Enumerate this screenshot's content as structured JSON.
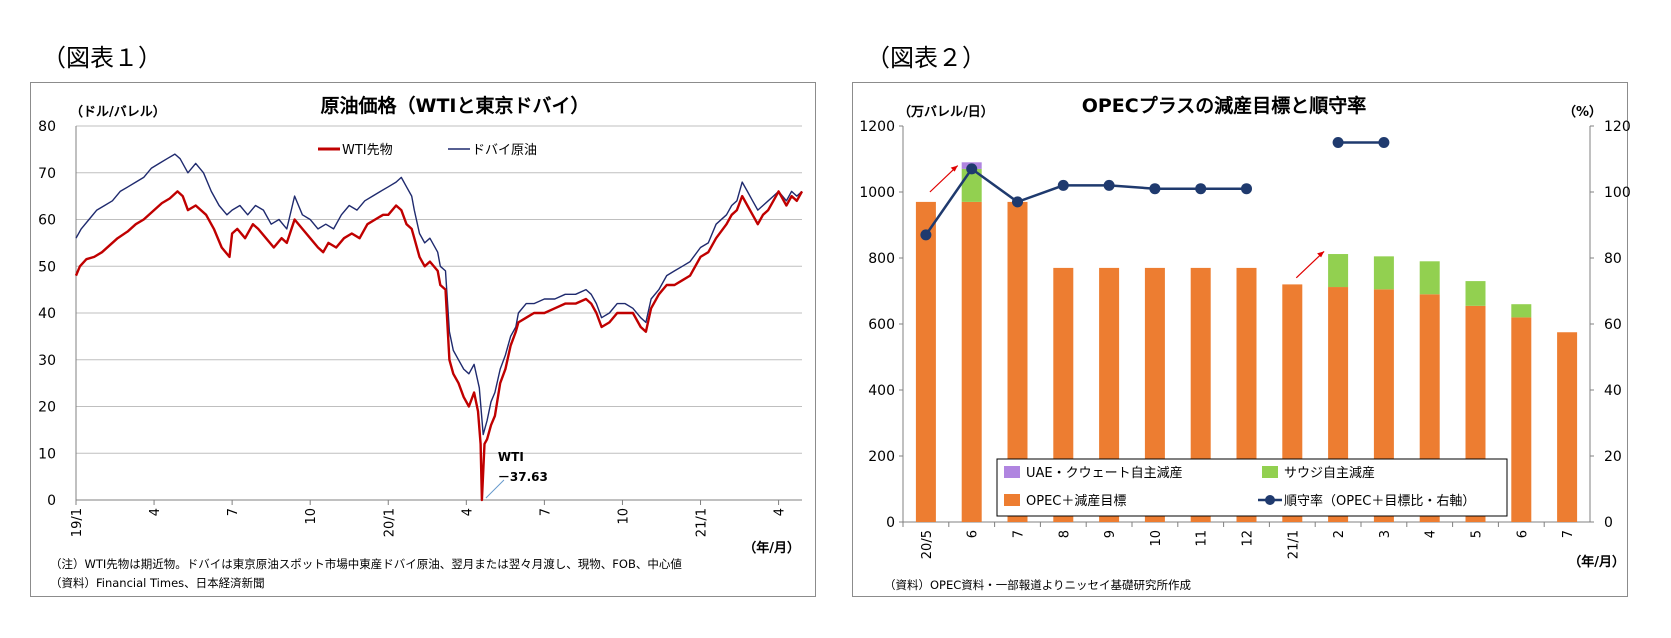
{
  "figures": [
    {
      "label": "（図表１）"
    },
    {
      "label": "（図表２）"
    }
  ],
  "chart_data": [
    {
      "type": "line",
      "title": "原油価格（WTIと東京ドバイ）",
      "ylabel": "（ドル/バレル）",
      "xlabel": "（年/月）",
      "ylim": [
        0,
        80
      ],
      "yticks": [
        0,
        10,
        20,
        30,
        40,
        50,
        60,
        70,
        80
      ],
      "xticks": [
        "19/1",
        "4",
        "7",
        "10",
        "20/1",
        "4",
        "7",
        "10",
        "21/1",
        "4"
      ],
      "x_unit": "months since 2019-01",
      "grid": true,
      "legend_position": "top-center",
      "annotation": {
        "line1": "WTI",
        "line2": "－37.63",
        "x": 15.6,
        "value": -37.63
      },
      "notes": [
        "（注）WTI先物は期近物。ドバイは東京原油スポット市場中東産ドバイ原油、翌月または翌々月渡し、現物、FOB、中心値",
        "（資料）Financial Times、日本経済新聞"
      ],
      "series": [
        {
          "name": "WTI先物",
          "color": "#c00000",
          "points": [
            [
              0,
              48
            ],
            [
              0.15,
              50
            ],
            [
              0.4,
              51.5
            ],
            [
              0.7,
              52
            ],
            [
              1,
              53
            ],
            [
              1.3,
              54.5
            ],
            [
              1.6,
              56
            ],
            [
              2,
              57.5
            ],
            [
              2.3,
              59
            ],
            [
              2.6,
              60
            ],
            [
              3,
              62
            ],
            [
              3.3,
              63.5
            ],
            [
              3.6,
              64.5
            ],
            [
              3.9,
              66
            ],
            [
              4.1,
              65
            ],
            [
              4.3,
              62
            ],
            [
              4.6,
              63
            ],
            [
              5,
              61
            ],
            [
              5.3,
              58
            ],
            [
              5.6,
              54
            ],
            [
              5.9,
              52
            ],
            [
              6,
              57
            ],
            [
              6.2,
              58
            ],
            [
              6.5,
              56
            ],
            [
              6.8,
              59
            ],
            [
              7,
              58
            ],
            [
              7.3,
              56
            ],
            [
              7.6,
              54
            ],
            [
              7.9,
              56
            ],
            [
              8.1,
              55
            ],
            [
              8.4,
              60
            ],
            [
              8.7,
              58
            ],
            [
              9,
              56
            ],
            [
              9.3,
              54
            ],
            [
              9.5,
              53
            ],
            [
              9.7,
              55
            ],
            [
              10,
              54
            ],
            [
              10.3,
              56
            ],
            [
              10.6,
              57
            ],
            [
              10.9,
              56
            ],
            [
              11.2,
              59
            ],
            [
              11.5,
              60
            ],
            [
              11.8,
              61
            ],
            [
              12,
              61
            ],
            [
              12.3,
              63
            ],
            [
              12.5,
              62
            ],
            [
              12.7,
              59
            ],
            [
              12.9,
              58
            ],
            [
              13,
              56
            ],
            [
              13.2,
              52
            ],
            [
              13.4,
              50
            ],
            [
              13.6,
              51
            ],
            [
              13.9,
              49
            ],
            [
              14,
              46
            ],
            [
              14.2,
              45
            ],
            [
              14.35,
              30
            ],
            [
              14.5,
              27
            ],
            [
              14.7,
              25
            ],
            [
              14.9,
              22
            ],
            [
              15.1,
              20
            ],
            [
              15.3,
              23
            ],
            [
              15.45,
              19
            ],
            [
              15.55,
              12
            ],
            [
              15.6,
              -37.63
            ],
            [
              15.7,
              12
            ],
            [
              15.8,
              13
            ],
            [
              15.95,
              16
            ],
            [
              16.1,
              18
            ],
            [
              16.3,
              25
            ],
            [
              16.5,
              28
            ],
            [
              16.7,
              33
            ],
            [
              16.9,
              36
            ],
            [
              17,
              38
            ],
            [
              17.3,
              39
            ],
            [
              17.6,
              40
            ],
            [
              18,
              40
            ],
            [
              18.4,
              41
            ],
            [
              18.8,
              42
            ],
            [
              19.2,
              42
            ],
            [
              19.6,
              43
            ],
            [
              19.8,
              42
            ],
            [
              20,
              40
            ],
            [
              20.2,
              37
            ],
            [
              20.5,
              38
            ],
            [
              20.8,
              40
            ],
            [
              21.1,
              40
            ],
            [
              21.4,
              40
            ],
            [
              21.7,
              37
            ],
            [
              21.9,
              36
            ],
            [
              22.1,
              41
            ],
            [
              22.4,
              44
            ],
            [
              22.7,
              46
            ],
            [
              23,
              46
            ],
            [
              23.3,
              47
            ],
            [
              23.6,
              48
            ],
            [
              24,
              52
            ],
            [
              24.3,
              53
            ],
            [
              24.6,
              56
            ],
            [
              25,
              59
            ],
            [
              25.2,
              61
            ],
            [
              25.4,
              62
            ],
            [
              25.6,
              65
            ],
            [
              25.8,
              63
            ],
            [
              26,
              61
            ],
            [
              26.2,
              59
            ],
            [
              26.4,
              61
            ],
            [
              26.6,
              62
            ],
            [
              26.8,
              64
            ],
            [
              27,
              66
            ],
            [
              27.3,
              63
            ],
            [
              27.5,
              65
            ],
            [
              27.7,
              64
            ],
            [
              27.9,
              66
            ]
          ]
        },
        {
          "name": "ドバイ原油",
          "color": "#1f2a6e",
          "points": [
            [
              0,
              56
            ],
            [
              0.2,
              58
            ],
            [
              0.5,
              60
            ],
            [
              0.8,
              62
            ],
            [
              1.1,
              63
            ],
            [
              1.4,
              64
            ],
            [
              1.7,
              66
            ],
            [
              2,
              67
            ],
            [
              2.3,
              68
            ],
            [
              2.6,
              69
            ],
            [
              2.9,
              71
            ],
            [
              3.2,
              72
            ],
            [
              3.5,
              73
            ],
            [
              3.8,
              74
            ],
            [
              4,
              73
            ],
            [
              4.3,
              70
            ],
            [
              4.6,
              72
            ],
            [
              4.9,
              70
            ],
            [
              5.2,
              66
            ],
            [
              5.5,
              63
            ],
            [
              5.8,
              61
            ],
            [
              6,
              62
            ],
            [
              6.3,
              63
            ],
            [
              6.6,
              61
            ],
            [
              6.9,
              63
            ],
            [
              7.2,
              62
            ],
            [
              7.5,
              59
            ],
            [
              7.8,
              60
            ],
            [
              8.1,
              58
            ],
            [
              8.4,
              65
            ],
            [
              8.7,
              61
            ],
            [
              9,
              60
            ],
            [
              9.3,
              58
            ],
            [
              9.6,
              59
            ],
            [
              9.9,
              58
            ],
            [
              10.2,
              61
            ],
            [
              10.5,
              63
            ],
            [
              10.8,
              62
            ],
            [
              11.1,
              64
            ],
            [
              11.4,
              65
            ],
            [
              11.7,
              66
            ],
            [
              12,
              67
            ],
            [
              12.3,
              68
            ],
            [
              12.5,
              69
            ],
            [
              12.7,
              67
            ],
            [
              12.9,
              65
            ],
            [
              13,
              62
            ],
            [
              13.2,
              57
            ],
            [
              13.4,
              55
            ],
            [
              13.6,
              56
            ],
            [
              13.9,
              53
            ],
            [
              14,
              50
            ],
            [
              14.2,
              49
            ],
            [
              14.35,
              36
            ],
            [
              14.5,
              32
            ],
            [
              14.7,
              30
            ],
            [
              14.9,
              28
            ],
            [
              15.1,
              27
            ],
            [
              15.3,
              29
            ],
            [
              15.5,
              24
            ],
            [
              15.65,
              14
            ],
            [
              15.8,
              17
            ],
            [
              15.95,
              21
            ],
            [
              16.1,
              23
            ],
            [
              16.3,
              28
            ],
            [
              16.5,
              31
            ],
            [
              16.7,
              35
            ],
            [
              16.9,
              37
            ],
            [
              17,
              40
            ],
            [
              17.3,
              42
            ],
            [
              17.6,
              42
            ],
            [
              18,
              43
            ],
            [
              18.4,
              43
            ],
            [
              18.8,
              44
            ],
            [
              19.2,
              44
            ],
            [
              19.6,
              45
            ],
            [
              19.8,
              44
            ],
            [
              20,
              42
            ],
            [
              20.2,
              39
            ],
            [
              20.5,
              40
            ],
            [
              20.8,
              42
            ],
            [
              21.1,
              42
            ],
            [
              21.4,
              41
            ],
            [
              21.7,
              39
            ],
            [
              21.9,
              38
            ],
            [
              22.1,
              43
            ],
            [
              22.4,
              45
            ],
            [
              22.7,
              48
            ],
            [
              23,
              49
            ],
            [
              23.3,
              50
            ],
            [
              23.6,
              51
            ],
            [
              24,
              54
            ],
            [
              24.3,
              55
            ],
            [
              24.6,
              59
            ],
            [
              25,
              61
            ],
            [
              25.2,
              63
            ],
            [
              25.4,
              64
            ],
            [
              25.6,
              68
            ],
            [
              25.8,
              66
            ],
            [
              26,
              64
            ],
            [
              26.2,
              62
            ],
            [
              26.4,
              63
            ],
            [
              26.6,
              64
            ],
            [
              26.8,
              65
            ],
            [
              27,
              66
            ],
            [
              27.3,
              64
            ],
            [
              27.5,
              66
            ],
            [
              27.7,
              65
            ],
            [
              27.9,
              66
            ]
          ]
        }
      ]
    },
    {
      "type": "bar",
      "title": "OPECプラスの減産目標と順守率",
      "ylabel": "（万バレル/日）",
      "y2label": "（%）",
      "xlabel": "（年/月）",
      "ylim": [
        0,
        1200
      ],
      "y2lim": [
        0,
        120
      ],
      "yticks": [
        0,
        200,
        400,
        600,
        800,
        1000,
        1200
      ],
      "y2ticks": [
        0,
        20,
        40,
        60,
        80,
        100,
        120
      ],
      "categories": [
        "20/5",
        "6",
        "7",
        "8",
        "9",
        "10",
        "11",
        "12",
        "21/1",
        "2",
        "3",
        "4",
        "5",
        "6",
        "7"
      ],
      "stacked": true,
      "legend_position": "bottom-right (inside plot)",
      "source_note": "（資料）OPEC資料・一部報道よりニッセイ基礎研究所作成",
      "series": [
        {
          "name": "OPEC＋減産目標",
          "color": "#ed7d31",
          "values": [
            970,
            970,
            970,
            770,
            770,
            770,
            770,
            770,
            720,
            712,
            705,
            690,
            655,
            620,
            575
          ]
        },
        {
          "name": "サウジ自主減産",
          "color": "#92d050",
          "values": [
            0,
            100,
            0,
            0,
            0,
            0,
            0,
            0,
            0,
            100,
            100,
            100,
            75,
            40,
            0
          ]
        },
        {
          "name": "UAE・クウェート自主減産",
          "color": "#b085e0",
          "values": [
            0,
            20,
            0,
            0,
            0,
            0,
            0,
            0,
            0,
            0,
            0,
            0,
            0,
            0,
            0
          ]
        },
        {
          "name": "順守率（OPEC＋目標比・右軸）",
          "type": "line",
          "axis": "right",
          "color": "#1f3a6e",
          "values": [
            87,
            107,
            97,
            102,
            102,
            101,
            101,
            101,
            null,
            115,
            115,
            null,
            null,
            null,
            null
          ]
        }
      ]
    }
  ]
}
